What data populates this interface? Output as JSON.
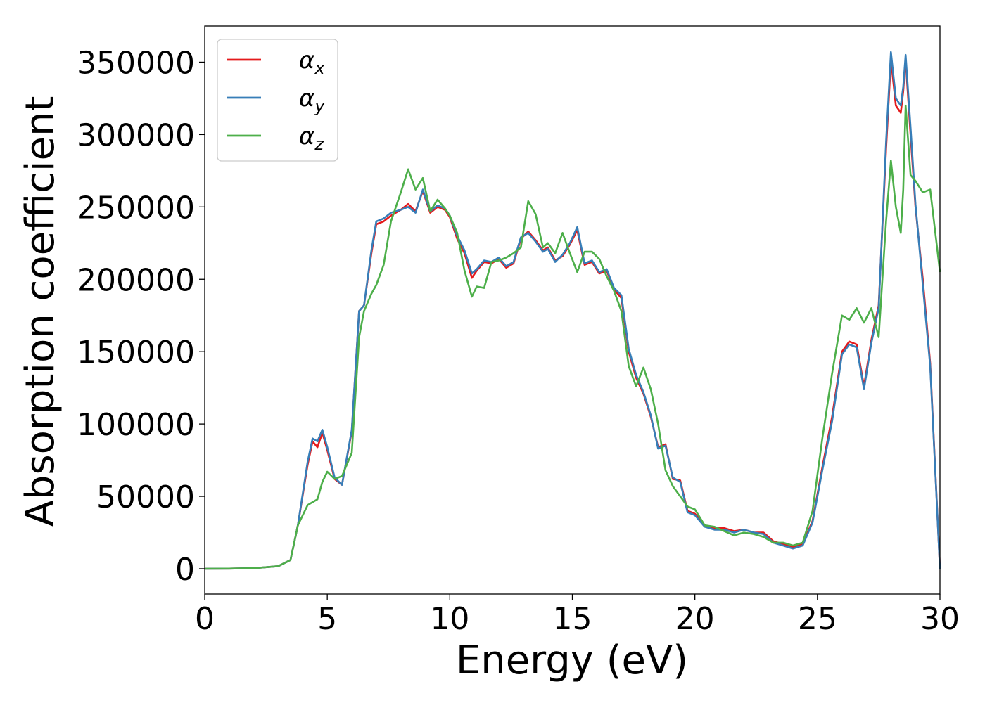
{
  "chart_data": {
    "type": "line",
    "xlabel": "Energy (eV)",
    "ylabel": "Absorption coefficient",
    "xlim": [
      0,
      30
    ],
    "ylim": [
      -17500,
      375000
    ],
    "xticks": [
      0,
      5,
      10,
      15,
      20,
      25,
      30
    ],
    "xtick_labels": [
      "0",
      "5",
      "10",
      "15",
      "20",
      "25",
      "30"
    ],
    "yticks": [
      0,
      50000,
      100000,
      150000,
      200000,
      250000,
      300000,
      350000
    ],
    "ytick_labels": [
      "0",
      "50000",
      "100000",
      "150000",
      "200000",
      "250000",
      "300000",
      "350000"
    ],
    "grid": false,
    "legend": "top-left",
    "series": [
      {
        "name": "α",
        "name_sub": "x",
        "color": "#e41a1c",
        "x": [
          0,
          1,
          2,
          3,
          3.5,
          3.8,
          4.2,
          4.4,
          4.6,
          4.8,
          5.0,
          5.3,
          5.6,
          6.0,
          6.3,
          6.5,
          6.8,
          7.0,
          7.3,
          7.6,
          8.0,
          8.3,
          8.6,
          8.9,
          9.2,
          9.5,
          9.8,
          10.0,
          10.3,
          10.6,
          10.9,
          11.1,
          11.4,
          11.7,
          12.0,
          12.3,
          12.6,
          12.9,
          13.2,
          13.5,
          13.8,
          14.0,
          14.3,
          14.6,
          14.9,
          15.2,
          15.5,
          15.8,
          16.1,
          16.4,
          16.7,
          17.0,
          17.3,
          17.6,
          17.9,
          18.2,
          18.5,
          18.8,
          19.1,
          19.4,
          19.7,
          20.0,
          20.4,
          20.8,
          21.2,
          21.6,
          22.0,
          22.4,
          22.8,
          23.2,
          23.6,
          24.0,
          24.4,
          24.8,
          25.2,
          25.6,
          26.0,
          26.3,
          26.6,
          26.9,
          27.2,
          27.5,
          27.8,
          28.0,
          28.2,
          28.4,
          28.5,
          28.6,
          28.8,
          29.0,
          29.3,
          29.6,
          30.0
        ],
        "y": [
          0,
          100,
          400,
          1800,
          6000,
          30000,
          72000,
          88000,
          84000,
          94000,
          82000,
          62000,
          58000,
          95000,
          178000,
          182000,
          218000,
          238000,
          240000,
          244000,
          248000,
          252000,
          247000,
          261000,
          246000,
          250000,
          248000,
          243000,
          228000,
          218000,
          201000,
          206000,
          212000,
          211000,
          214000,
          208000,
          211000,
          228000,
          233000,
          227000,
          220000,
          222000,
          213000,
          216000,
          224000,
          234000,
          210000,
          212000,
          204000,
          206000,
          193000,
          187000,
          150000,
          132000,
          121000,
          105000,
          84000,
          86000,
          62000,
          61000,
          40000,
          38000,
          30000,
          28000,
          28000,
          26000,
          27000,
          25000,
          25000,
          19000,
          17000,
          15000,
          17000,
          33000,
          70000,
          105000,
          150000,
          157000,
          155000,
          126000,
          158000,
          182000,
          290000,
          352000,
          320000,
          315000,
          330000,
          352000,
          300000,
          250000,
          200000,
          142000,
          0
        ]
      },
      {
        "name": "α",
        "name_sub": "y",
        "color": "#377eb8",
        "x": [
          0,
          1,
          2,
          3,
          3.5,
          3.8,
          4.2,
          4.4,
          4.6,
          4.8,
          5.0,
          5.3,
          5.6,
          6.0,
          6.3,
          6.5,
          6.8,
          7.0,
          7.3,
          7.6,
          8.0,
          8.3,
          8.6,
          8.9,
          9.2,
          9.5,
          9.8,
          10.0,
          10.3,
          10.6,
          10.9,
          11.1,
          11.4,
          11.7,
          12.0,
          12.3,
          12.6,
          12.9,
          13.2,
          13.5,
          13.8,
          14.0,
          14.3,
          14.6,
          14.9,
          15.2,
          15.5,
          15.8,
          16.1,
          16.4,
          16.7,
          17.0,
          17.3,
          17.6,
          17.9,
          18.2,
          18.5,
          18.8,
          19.1,
          19.4,
          19.7,
          20.0,
          20.4,
          20.8,
          21.2,
          21.6,
          22.0,
          22.4,
          22.8,
          23.2,
          23.6,
          24.0,
          24.4,
          24.8,
          25.2,
          25.6,
          26.0,
          26.3,
          26.6,
          26.9,
          27.2,
          27.5,
          27.8,
          28.0,
          28.2,
          28.4,
          28.5,
          28.6,
          28.8,
          29.0,
          29.3,
          29.6,
          30.0
        ],
        "y": [
          0,
          100,
          400,
          1800,
          6000,
          30000,
          74000,
          90000,
          88000,
          96000,
          84000,
          63000,
          58000,
          96000,
          178000,
          182000,
          220000,
          240000,
          242000,
          246000,
          248000,
          250000,
          246000,
          262000,
          247000,
          251000,
          249000,
          244000,
          230000,
          220000,
          204000,
          207000,
          213000,
          212000,
          215000,
          209000,
          212000,
          229000,
          232000,
          226000,
          219000,
          221000,
          212000,
          217000,
          225000,
          236000,
          211000,
          213000,
          205000,
          207000,
          194000,
          189000,
          152000,
          134000,
          122000,
          106000,
          83000,
          85000,
          63000,
          60000,
          39000,
          37000,
          29000,
          27000,
          27000,
          25000,
          27000,
          25000,
          24000,
          18000,
          16000,
          14000,
          16000,
          32000,
          68000,
          102000,
          148000,
          155000,
          153000,
          124000,
          156000,
          180000,
          295000,
          357000,
          325000,
          320000,
          333000,
          355000,
          305000,
          252000,
          196000,
          140000,
          0
        ]
      },
      {
        "name": "α",
        "name_sub": "z",
        "color": "#4daf4a",
        "x": [
          0,
          1,
          2,
          3,
          3.5,
          3.8,
          4.2,
          4.4,
          4.6,
          4.8,
          5.0,
          5.3,
          5.6,
          6.0,
          6.3,
          6.5,
          6.8,
          7.0,
          7.3,
          7.6,
          8.0,
          8.3,
          8.6,
          8.9,
          9.2,
          9.5,
          9.8,
          10.0,
          10.3,
          10.6,
          10.9,
          11.1,
          11.4,
          11.7,
          12.0,
          12.3,
          12.6,
          12.9,
          13.2,
          13.5,
          13.8,
          14.0,
          14.3,
          14.6,
          14.9,
          15.2,
          15.5,
          15.8,
          16.1,
          16.4,
          16.7,
          17.0,
          17.3,
          17.6,
          17.9,
          18.2,
          18.5,
          18.8,
          19.1,
          19.4,
          19.7,
          20.0,
          20.4,
          20.8,
          21.2,
          21.6,
          22.0,
          22.4,
          22.8,
          23.2,
          23.6,
          24.0,
          24.4,
          24.8,
          25.2,
          25.6,
          26.0,
          26.3,
          26.6,
          26.9,
          27.2,
          27.5,
          27.8,
          28.0,
          28.2,
          28.4,
          28.5,
          28.6,
          28.8,
          29.0,
          29.3,
          29.6,
          30.0
        ],
        "y": [
          0,
          100,
          400,
          1800,
          6000,
          30000,
          44000,
          46000,
          48000,
          60000,
          67000,
          62000,
          64000,
          80000,
          160000,
          178000,
          190000,
          196000,
          210000,
          240000,
          260000,
          276000,
          262000,
          270000,
          247000,
          255000,
          249000,
          244000,
          232000,
          206000,
          188000,
          195000,
          194000,
          212000,
          213000,
          215000,
          218000,
          222000,
          254000,
          245000,
          222000,
          225000,
          218000,
          232000,
          218000,
          205000,
          219000,
          219000,
          214000,
          202000,
          192000,
          178000,
          140000,
          126000,
          139000,
          124000,
          100000,
          68000,
          57000,
          50000,
          43000,
          41000,
          30000,
          29000,
          26000,
          23000,
          25000,
          24000,
          22000,
          18000,
          18000,
          16000,
          18000,
          40000,
          90000,
          135000,
          175000,
          172000,
          180000,
          170000,
          180000,
          160000,
          240000,
          282000,
          250000,
          232000,
          262000,
          320000,
          272000,
          268000,
          260000,
          262000,
          205000
        ]
      }
    ]
  }
}
